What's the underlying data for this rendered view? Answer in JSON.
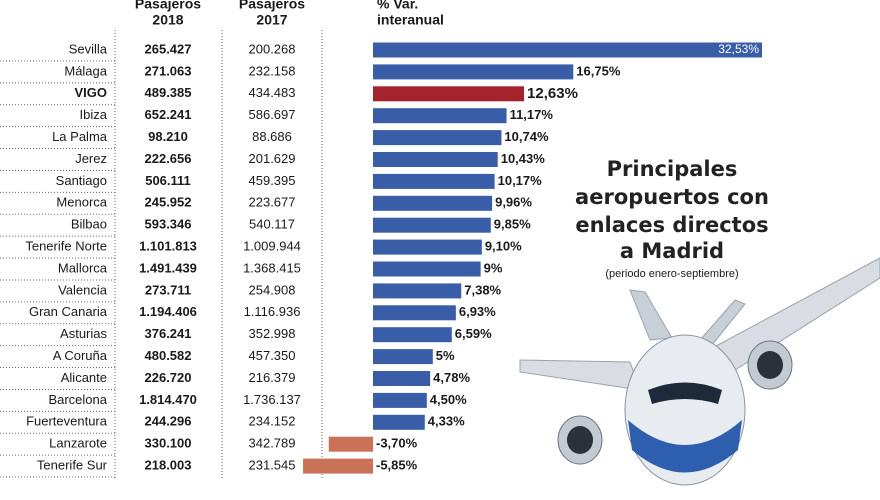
{
  "chart_data": {
    "type": "bar",
    "title": [
      "Principales",
      "aeropuertos con",
      "enlaces directos",
      "a Madrid"
    ],
    "subtitle": "(periodo enero-septiembre)",
    "column_headers": [
      [
        "Pasajeros",
        "2018"
      ],
      [
        "Pasajeros",
        "2017"
      ],
      [
        "% Var.",
        "interanual"
      ]
    ],
    "categories": [
      "Sevilla",
      "Málaga",
      "VIGO",
      "Ibiza",
      "La Palma",
      "Jerez",
      "Santiago",
      "Menorca",
      "Bilbao",
      "Tenerife Norte",
      "Mallorca",
      "Valencia",
      "Gran Canaria",
      "Asturias",
      "A Coruña",
      "Alicante",
      "Barcelona",
      "Fuerteventura",
      "Lanzarote",
      "Tenerife Sur"
    ],
    "passengers_2018": [
      "265.427",
      "271.063",
      "489.385",
      "652.241",
      "98.210",
      "222.656",
      "506.111",
      "245.952",
      "593.346",
      "1.101.813",
      "1.491.439",
      "273.711",
      "1.194.406",
      "376.241",
      "480.582",
      "226.720",
      "1.814.470",
      "244.296",
      "330.100",
      "218.003"
    ],
    "passengers_2017": [
      "200.268",
      "232.158",
      "434.483",
      "586.697",
      "88.686",
      "201.629",
      "459.395",
      "223.677",
      "540.117",
      "1.009.944",
      "1.368.415",
      "254.908",
      "1.116.936",
      "352.998",
      "457.350",
      "216.379",
      "1.736.137",
      "234.152",
      "342.789",
      "231.545"
    ],
    "values": [
      32.53,
      16.75,
      12.63,
      11.17,
      10.74,
      10.43,
      10.17,
      9.96,
      9.85,
      9.1,
      9,
      7.38,
      6.93,
      6.59,
      5,
      4.78,
      4.5,
      4.33,
      -3.7,
      -5.85
    ],
    "value_labels": [
      "32,53%",
      "16,75%",
      "12,63%",
      "11,17%",
      "10,74%",
      "10,43%",
      "10,17%",
      "9,96%",
      "9,85%",
      "9,10%",
      "9%",
      "7,38%",
      "6,93%",
      "6,59%",
      "5%",
      "4,78%",
      "4,50%",
      "4,33%",
      "-3,70%",
      "-5,85%"
    ],
    "colors": [
      "#3a5da8",
      "#3a5da8",
      "#a3242d",
      "#3a5da8",
      "#3a5da8",
      "#3a5da8",
      "#3a5da8",
      "#3a5da8",
      "#3a5da8",
      "#3a5da8",
      "#3a5da8",
      "#3a5da8",
      "#3a5da8",
      "#3a5da8",
      "#3a5da8",
      "#3a5da8",
      "#3a5da8",
      "#3a5da8",
      "#c97257",
      "#c97257"
    ]
  }
}
